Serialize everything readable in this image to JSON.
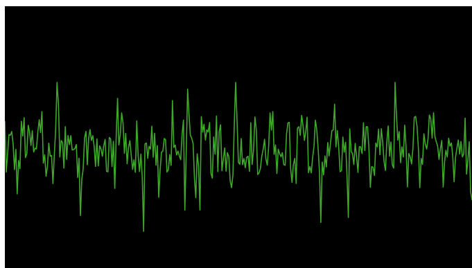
{
  "display": {
    "background_color": "#000000",
    "frame_color": "#ffffff",
    "trace_color": "#3fa82a",
    "trace_highlight_color": "#5fd23e"
  }
}
